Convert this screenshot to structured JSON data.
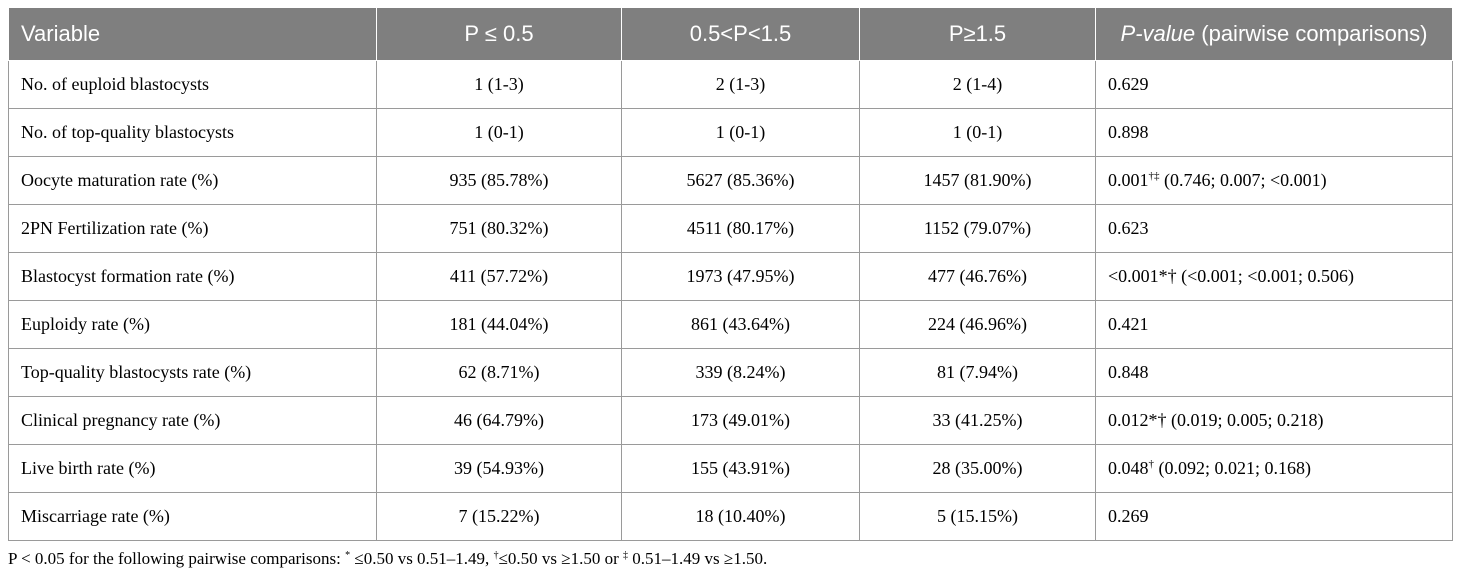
{
  "headers": {
    "variable": "Variable",
    "g1": "P ≤ 0.5",
    "g2": "0.5<P<1.5",
    "g3": "P≥1.5",
    "pvalue_italic": "P-value",
    "pvalue_rest": " (pairwise comparisons)"
  },
  "rows": [
    {
      "label": "No. of euploid blastocysts",
      "g1": "1 (1-3)",
      "g2": "2 (1-3)",
      "g3": "2 (1-4)",
      "p": "0.629",
      "p_sup": "",
      "p_detail": ""
    },
    {
      "label": "No. of top-quality blastocysts",
      "g1": "1 (0-1)",
      "g2": "1 (0-1)",
      "g3": "1 (0-1)",
      "p": "0.898",
      "p_sup": "",
      "p_detail": ""
    },
    {
      "label": "Oocyte maturation rate (%)",
      "g1": "935 (85.78%)",
      "g2": "5627 (85.36%)",
      "g3": "1457 (81.90%)",
      "p": "0.001",
      "p_sup": "†‡",
      "p_detail": " (0.746; 0.007; <0.001)"
    },
    {
      "label": "2PN Fertilization rate (%)",
      "g1": "751 (80.32%)",
      "g2": "4511 (80.17%)",
      "g3": "1152 (79.07%)",
      "p": "0.623",
      "p_sup": "",
      "p_detail": ""
    },
    {
      "label": "Blastocyst formation rate (%)",
      "g1": "411 (57.72%)",
      "g2": "1973 (47.95%)",
      "g3": "477 (46.76%)",
      "p": "<0.001*† (<0.001; <0.001; 0.506)",
      "p_sup": "",
      "p_detail": ""
    },
    {
      "label": "Euploidy rate (%)",
      "g1": "181 (44.04%)",
      "g2": "861 (43.64%)",
      "g3": "224 (46.96%)",
      "p": "0.421",
      "p_sup": "",
      "p_detail": ""
    },
    {
      "label": "Top-quality blastocysts rate (%)",
      "g1": "62 (8.71%)",
      "g2": "339 (8.24%)",
      "g3": "81 (7.94%)",
      "p": "0.848",
      "p_sup": "",
      "p_detail": ""
    },
    {
      "label": "Clinical pregnancy rate (%)",
      "g1": "46 (64.79%)",
      "g2": "173 (49.01%)",
      "g3": "33 (41.25%)",
      "p": "0.012*† (0.019; 0.005; 0.218)",
      "p_sup": "",
      "p_detail": ""
    },
    {
      "label": "Live birth rate (%)",
      "g1": "39 (54.93%)",
      "g2": "155 (43.91%)",
      "g3": "28 (35.00%)",
      "p": "0.048",
      "p_sup": "†",
      "p_detail": " (0.092; 0.021; 0.168)"
    },
    {
      "label": "Miscarriage rate (%)",
      "g1": "7 (15.22%)",
      "g2": "18 (10.40%)",
      "g3": "5 (15.15%)",
      "p": "0.269",
      "p_sup": "",
      "p_detail": ""
    }
  ],
  "footnote": {
    "part1": "P < 0.05 for the following pairwise comparisons: ",
    "sup1": "*",
    "part2": " ≤0.50 vs 0.51–1.49, ",
    "sup2": "†",
    "part3": "≤0.50 vs ≥1.50 or ",
    "sup3": "‡",
    "part4": " 0.51–1.49 vs ≥1.50."
  }
}
